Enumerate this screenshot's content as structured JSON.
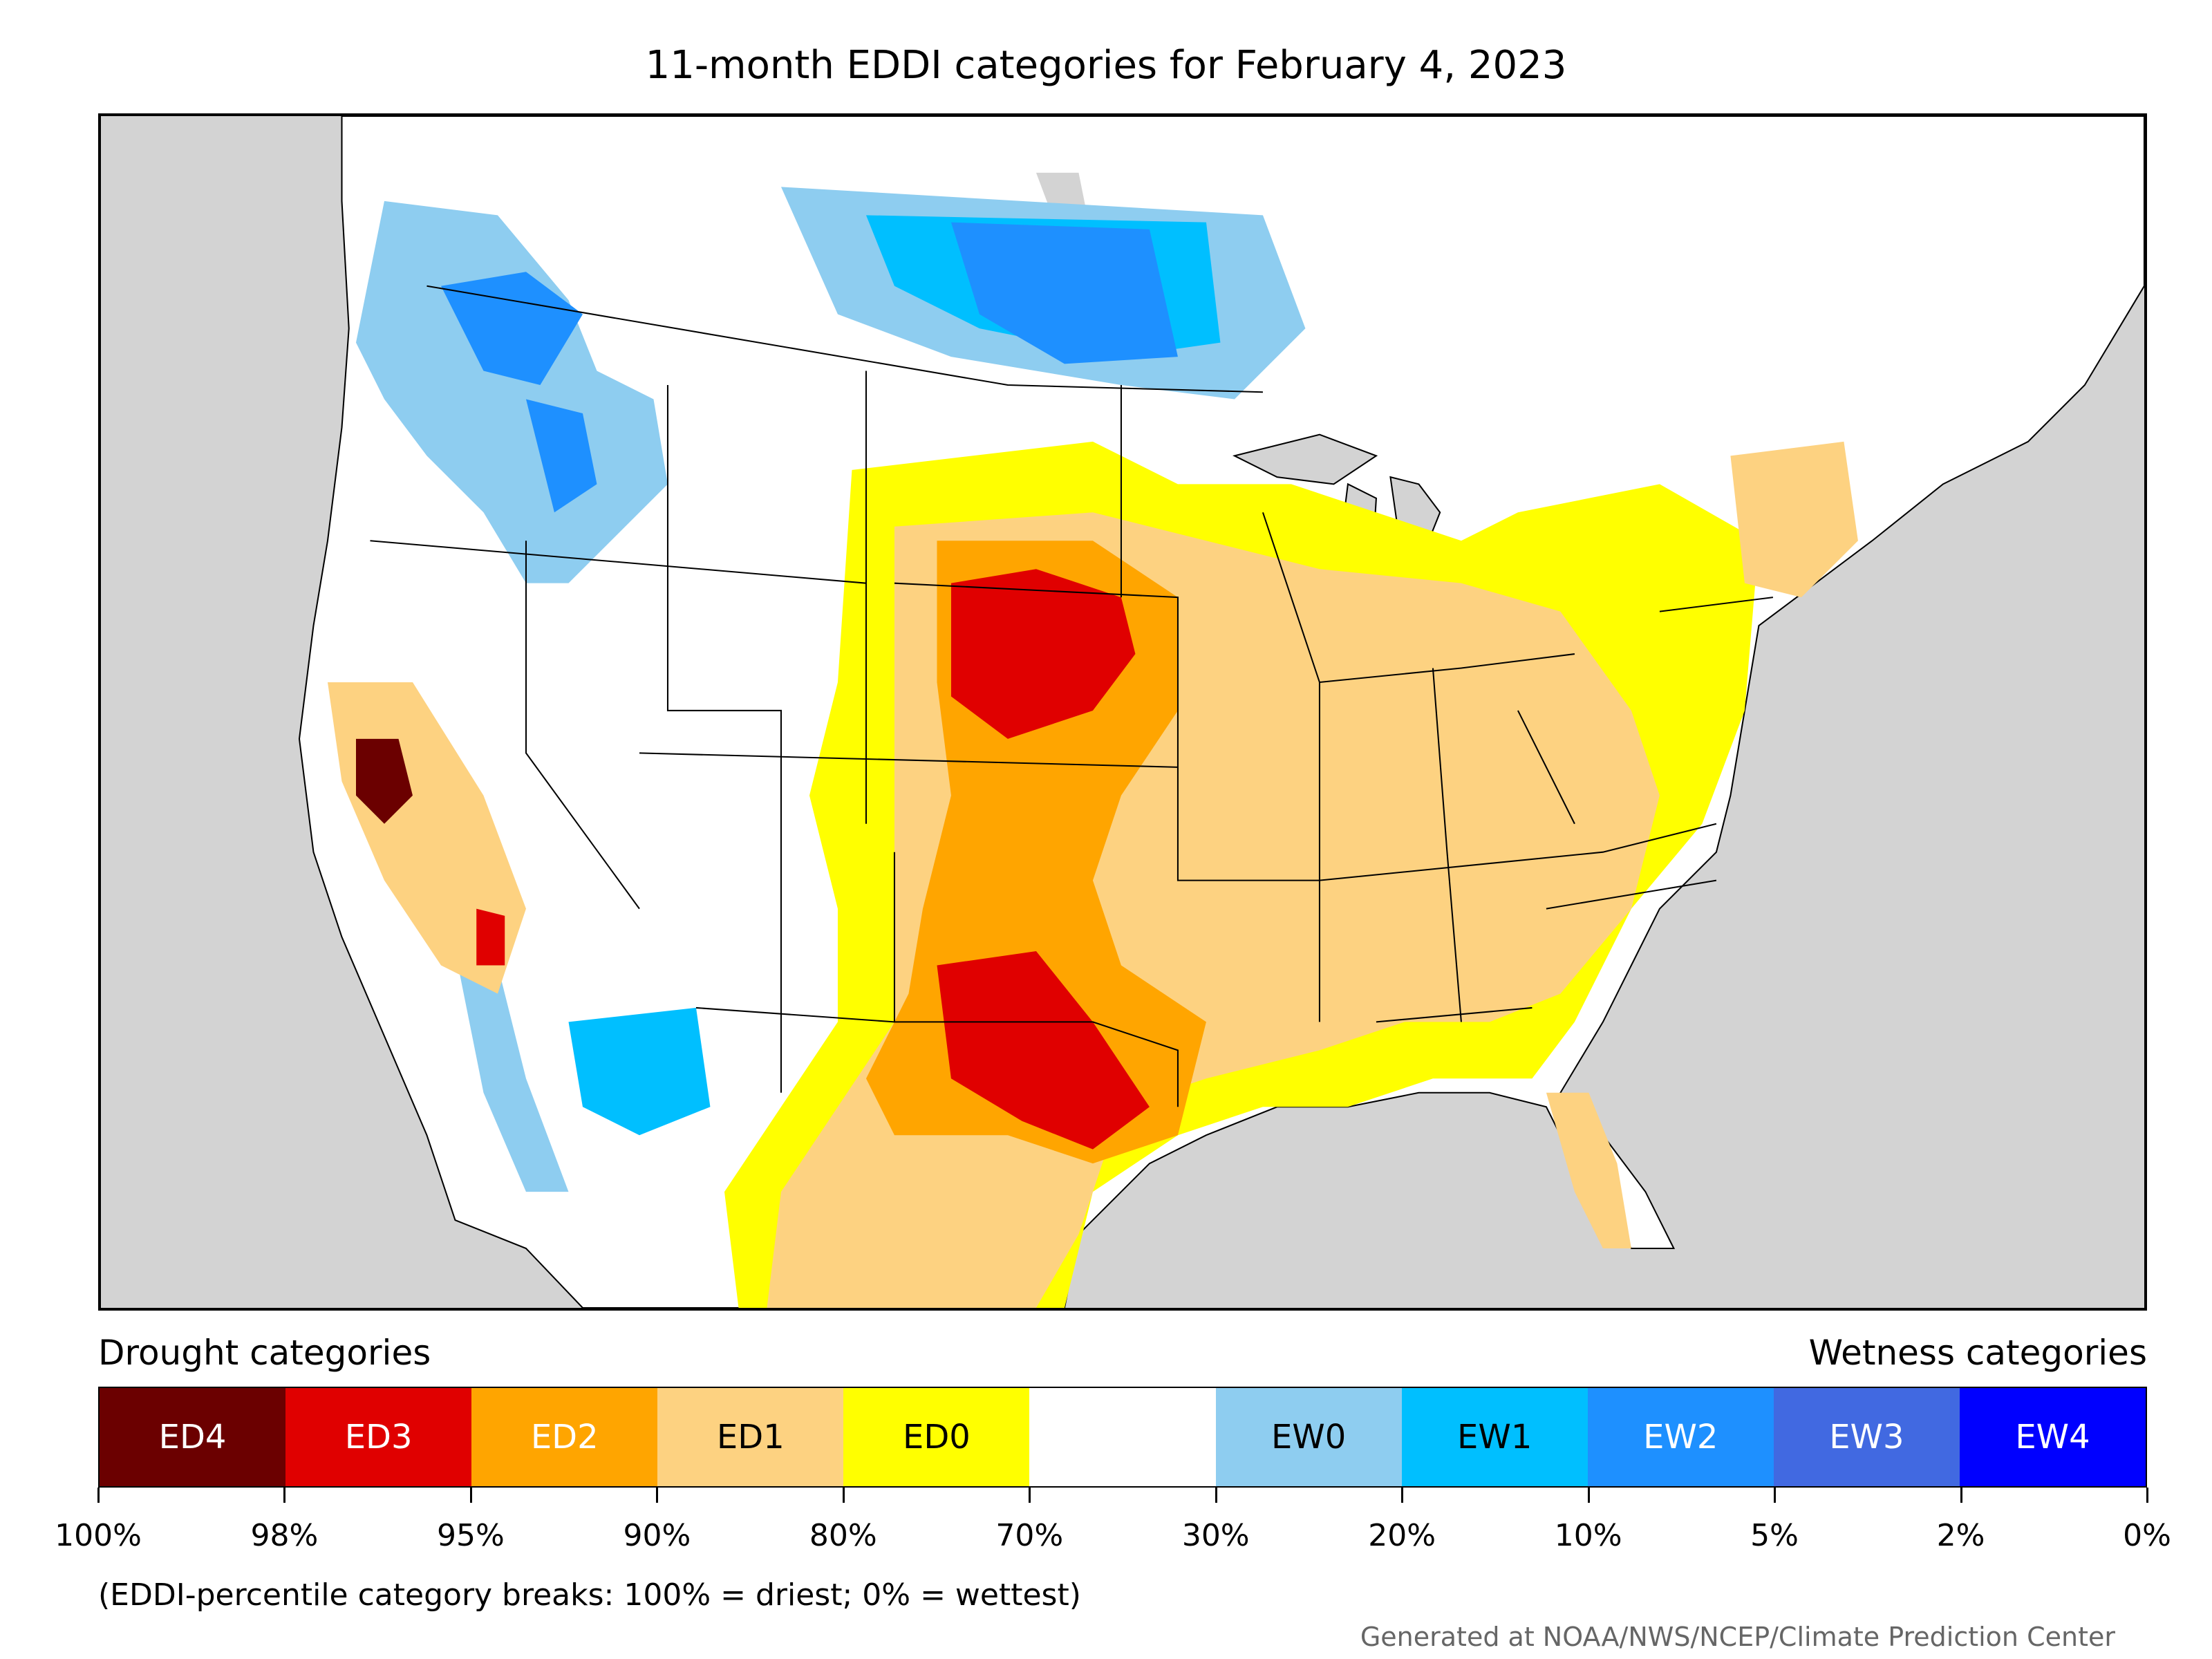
{
  "title": "11-month EDDI categories for February 4, 2023",
  "legend": {
    "left_heading": "Drought categories",
    "right_heading": "Wetness categories",
    "categories": [
      {
        "label": "ED4",
        "color": "#6b0000",
        "text_color": "#ffffff"
      },
      {
        "label": "ED3",
        "color": "#e00000",
        "text_color": "#ffffff"
      },
      {
        "label": "ED2",
        "color": "#ffa500",
        "text_color": "#ffffff"
      },
      {
        "label": "ED1",
        "color": "#fdd281",
        "text_color": "#000000"
      },
      {
        "label": "ED0",
        "color": "#ffff00",
        "text_color": "#000000"
      },
      {
        "label": "",
        "color": "#ffffff",
        "text_color": "#000000"
      },
      {
        "label": "EW0",
        "color": "#8ecdf0",
        "text_color": "#000000"
      },
      {
        "label": "EW1",
        "color": "#00bfff",
        "text_color": "#000000"
      },
      {
        "label": "EW2",
        "color": "#1e90ff",
        "text_color": "#ffffff"
      },
      {
        "label": "EW3",
        "color": "#4169e1",
        "text_color": "#ffffff"
      },
      {
        "label": "EW4",
        "color": "#0000ff",
        "text_color": "#ffffff"
      }
    ],
    "breaks": [
      "100%",
      "98%",
      "95%",
      "90%",
      "80%",
      "70%",
      "30%",
      "20%",
      "10%",
      "5%",
      "2%",
      "0%"
    ]
  },
  "note": "(EDDI-percentile category breaks: 100% = driest; 0% = wettest)",
  "credit": "Generated at NOAA/NWS/NCEP/Climate Prediction Center",
  "map": {
    "background_color": "#d3d3d3",
    "land_color": "#ffffff"
  }
}
